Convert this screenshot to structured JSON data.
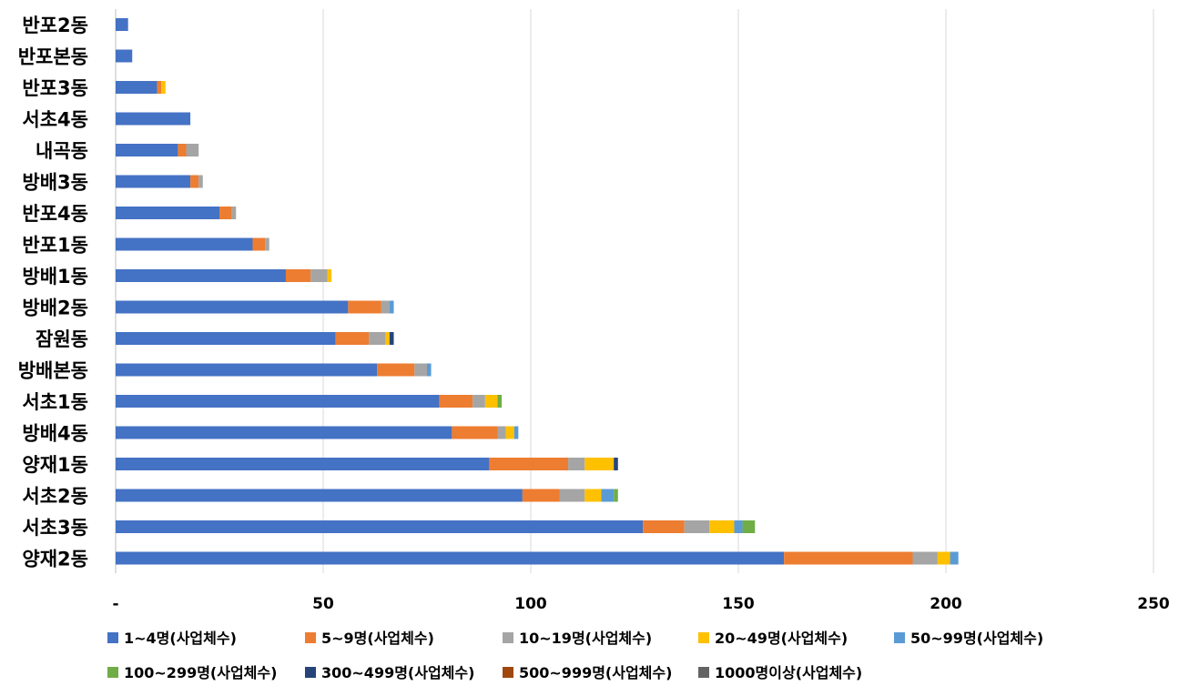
{
  "chart_data": {
    "type": "bar",
    "orientation": "horizontal",
    "stacked": true,
    "title": "",
    "xlabel": "",
    "ylabel": "",
    "xlim": [
      0,
      250
    ],
    "xticks": [
      0,
      50,
      100,
      150,
      200,
      250
    ],
    "xtick_labels": [
      "-",
      "50",
      "100",
      "150",
      "200",
      "250"
    ],
    "grid": true,
    "legend_position": "bottom",
    "categories": [
      "반포2동",
      "반포본동",
      "반포3동",
      "서초4동",
      "내곡동",
      "방배3동",
      "반포4동",
      "반포1동",
      "방배1동",
      "방배2동",
      "잠원동",
      "방배본동",
      "서초1동",
      "방배4동",
      "양재1동",
      "서초2동",
      "서초3동",
      "양재2동"
    ],
    "series": [
      {
        "name": "1~4명(사업체수)",
        "color": "#4472C4",
        "values": [
          3,
          4,
          10,
          18,
          15,
          18,
          25,
          33,
          41,
          56,
          53,
          63,
          78,
          81,
          90,
          98,
          127,
          161
        ]
      },
      {
        "name": "5~9명(사업체수)",
        "color": "#ED7D31",
        "values": [
          0,
          0,
          1,
          0,
          2,
          2,
          3,
          3,
          6,
          8,
          8,
          9,
          8,
          11,
          19,
          9,
          10,
          31
        ]
      },
      {
        "name": "10~19명(사업체수)",
        "color": "#A5A5A5",
        "values": [
          0,
          0,
          0,
          0,
          3,
          1,
          1,
          1,
          4,
          2,
          4,
          3,
          3,
          2,
          4,
          6,
          6,
          6
        ]
      },
      {
        "name": "20~49명(사업체수)",
        "color": "#FFC000",
        "values": [
          0,
          0,
          1,
          0,
          0,
          0,
          0,
          0,
          1,
          0,
          1,
          0,
          3,
          2,
          7,
          4,
          6,
          3
        ]
      },
      {
        "name": "50~99명(사업체수)",
        "color": "#5B9BD5",
        "values": [
          0,
          0,
          0,
          0,
          0,
          0,
          0,
          0,
          0,
          1,
          0,
          1,
          0,
          1,
          0,
          3,
          2,
          2
        ]
      },
      {
        "name": "100~299명(사업체수)",
        "color": "#70AD47",
        "values": [
          0,
          0,
          0,
          0,
          0,
          0,
          0,
          0,
          0,
          0,
          0,
          0,
          1,
          0,
          0,
          1,
          3,
          0
        ]
      },
      {
        "name": "300~499명(사업체수)",
        "color": "#264478",
        "values": [
          0,
          0,
          0,
          0,
          0,
          0,
          0,
          0,
          0,
          0,
          1,
          0,
          0,
          0,
          1,
          0,
          0,
          0
        ]
      },
      {
        "name": "500~999명(사업체수)",
        "color": "#9E480E",
        "values": [
          0,
          0,
          0,
          0,
          0,
          0,
          0,
          0,
          0,
          0,
          0,
          0,
          0,
          0,
          0,
          0,
          0,
          0
        ]
      },
      {
        "name": "1000명이상(사업체수)",
        "color": "#636363",
        "values": [
          0,
          0,
          0,
          0,
          0,
          0,
          0,
          0,
          0,
          0,
          0,
          0,
          0,
          0,
          0,
          0,
          0,
          0
        ]
      }
    ]
  }
}
